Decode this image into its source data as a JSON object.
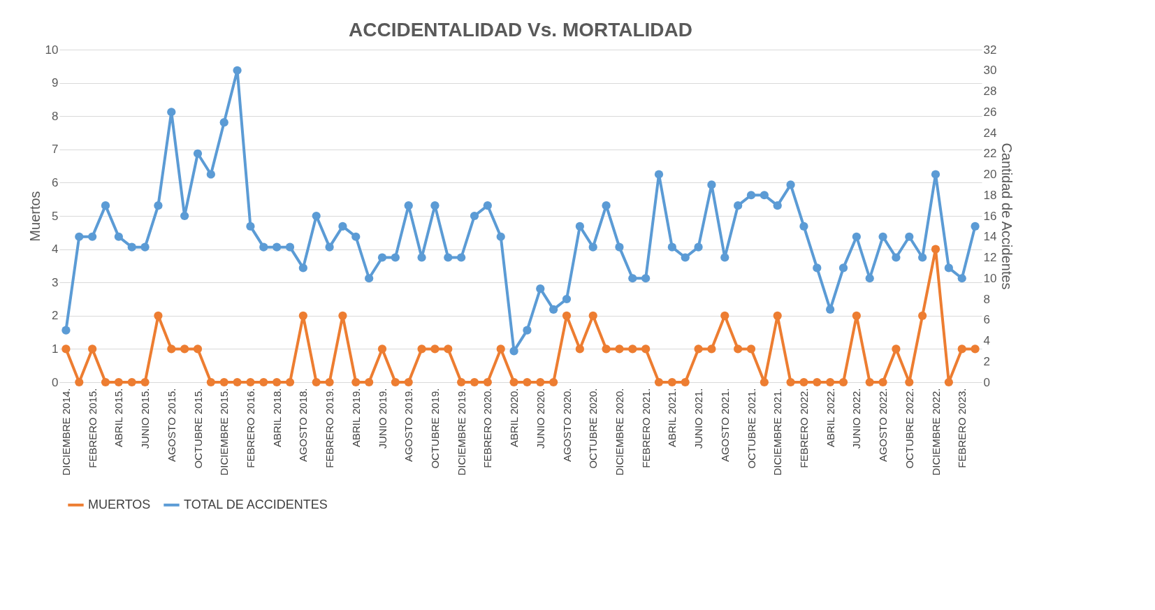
{
  "chart_data": {
    "type": "line",
    "title": "ACCIDENTALIDAD Vs. MORTALIDAD",
    "ylabel": "Muertos",
    "y2label": "Cantidad de Accidentes",
    "categories": [
      "DICIEMBRE 2014.",
      null,
      "FEBRERO 2015.",
      null,
      "ABRIL 2015.",
      null,
      "JUNIO 2015.",
      null,
      "AGOSTO 2015.",
      null,
      "OCTUBRE 2015.",
      null,
      "DICIEMBRE 2015.",
      null,
      "FEBRERO 2016.",
      null,
      "ABRIL 2018.",
      null,
      "AGOSTO 2018.",
      null,
      "FEBRERO 2019.",
      null,
      "ABRIL 2019.",
      null,
      "JUNIO 2019.",
      null,
      "AGOSTO 2019.",
      null,
      "OCTUBRE 2019.",
      null,
      "DICIEMBRE 2019.",
      null,
      "FEBRERO 2020.",
      null,
      "ABRIL 2020.",
      null,
      "JUNIO 2020.",
      null,
      "AGOSTO 2020.",
      null,
      "OCTUBRE 2020.",
      null,
      "DICIEMBRE 2020.",
      null,
      "FEBRERO 2021.",
      null,
      "ABRIL 2021.",
      null,
      "JUNIO 2021.",
      null,
      "AGOSTO 2021.",
      null,
      "OCTUBRE 2021.",
      null,
      "DICIEMBRE 2021.",
      null,
      "FEBRERO 2022.",
      null,
      "ABRIL 2022.",
      null,
      "JUNIO 2022.",
      null,
      "AGOSTO 2022.",
      null,
      "OCTUBRE 2022.",
      null,
      "DICIEMBRE 2022.",
      null,
      "FEBRERO 2023.",
      null
    ],
    "series": [
      {
        "name": "MUERTOS",
        "color": "#ed7d31",
        "values": [
          1,
          0,
          1,
          0,
          0,
          0,
          0,
          2,
          1,
          1,
          1,
          0,
          0,
          0,
          0,
          0,
          0,
          0,
          2,
          0,
          0,
          2,
          0,
          0,
          1,
          0,
          0,
          1,
          1,
          1,
          0,
          0,
          0,
          1,
          0,
          0,
          0,
          0,
          2,
          1,
          2,
          1,
          1,
          1,
          1,
          0,
          0,
          0,
          1,
          1,
          2,
          1,
          1,
          0,
          2,
          0,
          0,
          0,
          0,
          0,
          2,
          0,
          0,
          1,
          0,
          2,
          4,
          0,
          1,
          1
        ]
      },
      {
        "name": "TOTAL DE ACCIDENTES",
        "color": "#5b9bd5",
        "axis": "y2",
        "values": [
          5,
          14,
          14,
          17,
          14,
          13,
          13,
          17,
          26,
          16,
          22,
          20,
          25,
          30,
          15,
          13,
          13,
          13,
          11,
          16,
          13,
          15,
          14,
          10,
          12,
          12,
          17,
          12,
          17,
          12,
          12,
          16,
          17,
          14,
          3,
          5,
          9,
          7,
          8,
          15,
          13,
          17,
          13,
          10,
          10,
          20,
          13,
          12,
          13,
          19,
          12,
          17,
          18,
          18,
          17,
          19,
          15,
          11,
          7,
          11,
          14,
          10,
          14,
          12,
          14,
          12,
          20,
          11,
          10,
          15
        ]
      }
    ],
    "ylim": [
      0,
      10
    ],
    "yticks": [
      0,
      1,
      2,
      3,
      4,
      5,
      6,
      7,
      8,
      9,
      10
    ],
    "y2lim": [
      0,
      32
    ],
    "y2ticks": [
      0,
      2,
      4,
      6,
      8,
      10,
      12,
      14,
      16,
      18,
      20,
      22,
      24,
      26,
      28,
      30,
      32
    ],
    "grid": "y",
    "legend": "bottom",
    "marker": "circle",
    "line_style": "solid"
  }
}
